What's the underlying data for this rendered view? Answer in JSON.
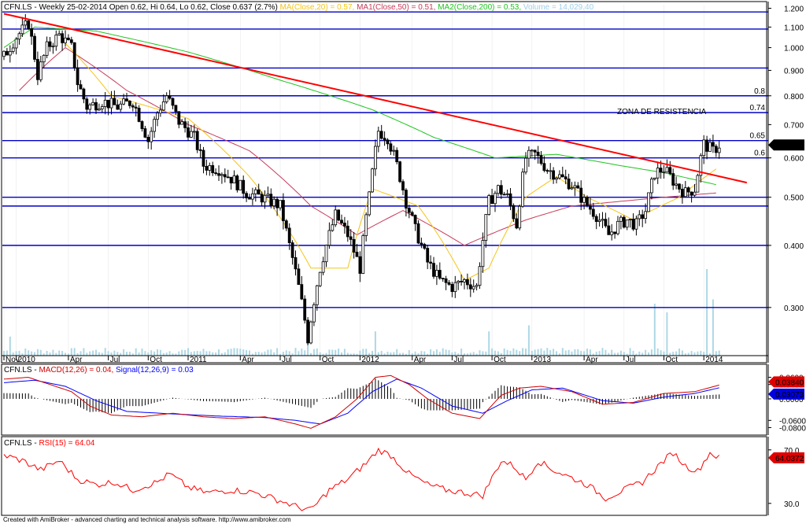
{
  "colors": {
    "candle": "#000000",
    "volume": "#add8e6",
    "support": "#0000c8",
    "trendline": "#ff0000",
    "ma20": "#f5c518",
    "ma50": "#c83c5a",
    "ma200": "#1fc41f",
    "macd": "#d00000",
    "signal": "#0000ff",
    "rsi": "#ff0000",
    "note": "#0000c8"
  },
  "header": {
    "symbol": "CFN.LS",
    "ohlc": " - Weekly 25-02-2014 Open 0.62, Hi 0.64, Lo 0.62, Close 0.637 (2.7%) ",
    "ma20": "MA(Close,20) = 0.57,",
    "ma50": " MA1(Close,50) = 0.51,",
    "ma200": " MA2(Close,200) = 0.53,",
    "volume": " Volume = 14,029.40"
  },
  "macd_header": {
    "symbol": "CFN.LS - ",
    "macd": "MACD(12,26) = 0.04,",
    "signal": " Signal(12,26,9) = 0.03"
  },
  "rsi_header": {
    "symbol": "CFN.LS - ",
    "rsi": "RSI(15) = 64.04"
  },
  "footer": "Created with AmiBroker - advanced charting and technical analysis software. http://www.amibroker.com",
  "chart_data": [
    {
      "type": "candlestick",
      "yscale": "log",
      "ylim": [
        0.24,
        1.22
      ],
      "y_ticks": [
        "1.200",
        "1.100",
        "1.000",
        "0.900",
        "0.800",
        "0.700",
        "0.600",
        "0.500",
        "0.400",
        "0.300"
      ],
      "x_ticks": [
        "Nov",
        "2010",
        "Apr",
        "Jul",
        "Oct",
        "2011",
        "Apr",
        "Jul",
        "Oct",
        "2012",
        "Apr",
        "Jul",
        "Oct",
        "2013",
        "Apr",
        "Jul",
        "Oct",
        "2014"
      ],
      "close_label": "0.637",
      "levels": [
        1.18,
        1.09,
        0.91,
        0.8,
        0.74,
        0.65,
        0.6,
        0.5,
        0.48,
        0.4,
        0.3
      ],
      "level_labels": [
        {
          "value": 0.8,
          "text": "0.8"
        },
        {
          "value": 0.74,
          "text": "0.74"
        },
        {
          "value": 0.65,
          "text": "0.65"
        },
        {
          "value": 0.6,
          "text": "0.6"
        }
      ],
      "annotation": "ZONA DE RESISTENCIA",
      "trendline": [
        {
          "week": 0,
          "price": 1.17
        },
        {
          "week": 242,
          "price": 0.535
        }
      ],
      "anchors": [
        {
          "week": 0,
          "close": 0.96
        },
        {
          "week": 4,
          "close": 1.05
        },
        {
          "week": 8,
          "close": 1.12
        },
        {
          "week": 11,
          "close": 0.88
        },
        {
          "week": 14,
          "close": 1.0
        },
        {
          "week": 18,
          "close": 1.06
        },
        {
          "week": 22,
          "close": 1.0
        },
        {
          "week": 24,
          "close": 0.85
        },
        {
          "week": 27,
          "close": 0.76
        },
        {
          "week": 32,
          "close": 0.78
        },
        {
          "week": 37,
          "close": 0.76
        },
        {
          "week": 42,
          "close": 0.78
        },
        {
          "week": 47,
          "close": 0.65
        },
        {
          "week": 50,
          "close": 0.74
        },
        {
          "week": 53,
          "close": 0.8
        },
        {
          "week": 57,
          "close": 0.71
        },
        {
          "week": 62,
          "close": 0.66
        },
        {
          "week": 65,
          "close": 0.58
        },
        {
          "week": 70,
          "close": 0.57
        },
        {
          "week": 75,
          "close": 0.54
        },
        {
          "week": 79,
          "close": 0.51
        },
        {
          "week": 84,
          "close": 0.5
        },
        {
          "week": 90,
          "close": 0.48
        },
        {
          "week": 93,
          "close": 0.4
        },
        {
          "week": 96,
          "close": 0.33
        },
        {
          "week": 99,
          "close": 0.26
        },
        {
          "week": 103,
          "close": 0.36
        },
        {
          "week": 108,
          "close": 0.46
        },
        {
          "week": 112,
          "close": 0.42
        },
        {
          "week": 116,
          "close": 0.36
        },
        {
          "week": 119,
          "close": 0.5
        },
        {
          "week": 122,
          "close": 0.68
        },
        {
          "week": 125,
          "close": 0.66
        },
        {
          "week": 128,
          "close": 0.58
        },
        {
          "week": 131,
          "close": 0.49
        },
        {
          "week": 134,
          "close": 0.43
        },
        {
          "week": 138,
          "close": 0.37
        },
        {
          "week": 142,
          "close": 0.34
        },
        {
          "week": 146,
          "close": 0.33
        },
        {
          "week": 150,
          "close": 0.34
        },
        {
          "week": 154,
          "close": 0.33
        },
        {
          "week": 158,
          "close": 0.49
        },
        {
          "week": 161,
          "close": 0.52
        },
        {
          "week": 164,
          "close": 0.5
        },
        {
          "week": 167,
          "close": 0.44
        },
        {
          "week": 170,
          "close": 0.6
        },
        {
          "week": 173,
          "close": 0.61
        },
        {
          "week": 177,
          "close": 0.57
        },
        {
          "week": 181,
          "close": 0.55
        },
        {
          "week": 185,
          "close": 0.53
        },
        {
          "week": 189,
          "close": 0.49
        },
        {
          "week": 193,
          "close": 0.46
        },
        {
          "week": 197,
          "close": 0.42
        },
        {
          "week": 200,
          "close": 0.44
        },
        {
          "week": 203,
          "close": 0.45
        },
        {
          "week": 206,
          "close": 0.44
        },
        {
          "week": 209,
          "close": 0.47
        },
        {
          "week": 212,
          "close": 0.56
        },
        {
          "week": 215,
          "close": 0.57
        },
        {
          "week": 219,
          "close": 0.53
        },
        {
          "week": 222,
          "close": 0.51
        },
        {
          "week": 225,
          "close": 0.52
        },
        {
          "week": 228,
          "close": 0.64
        },
        {
          "week": 231,
          "close": 0.62
        },
        {
          "week": 233,
          "close": 0.637
        }
      ],
      "ma20_curve": [
        {
          "week": 20,
          "value": 1.02
        },
        {
          "week": 35,
          "value": 0.8
        },
        {
          "week": 60,
          "value": 0.72
        },
        {
          "week": 80,
          "value": 0.55
        },
        {
          "week": 100,
          "value": 0.36
        },
        {
          "week": 112,
          "value": 0.36
        },
        {
          "week": 120,
          "value": 0.52
        },
        {
          "week": 135,
          "value": 0.48
        },
        {
          "week": 150,
          "value": 0.34
        },
        {
          "week": 158,
          "value": 0.36
        },
        {
          "week": 170,
          "value": 0.5
        },
        {
          "week": 180,
          "value": 0.55
        },
        {
          "week": 190,
          "value": 0.5
        },
        {
          "week": 205,
          "value": 0.45
        },
        {
          "week": 220,
          "value": 0.5
        },
        {
          "week": 232,
          "value": 0.57
        }
      ],
      "ma50_curve": [
        {
          "week": 5,
          "value": 0.82
        },
        {
          "week": 20,
          "value": 1.0
        },
        {
          "week": 40,
          "value": 0.82
        },
        {
          "week": 60,
          "value": 0.7
        },
        {
          "week": 80,
          "value": 0.62
        },
        {
          "week": 100,
          "value": 0.48
        },
        {
          "week": 115,
          "value": 0.42
        },
        {
          "week": 130,
          "value": 0.47
        },
        {
          "week": 150,
          "value": 0.4
        },
        {
          "week": 170,
          "value": 0.45
        },
        {
          "week": 185,
          "value": 0.48
        },
        {
          "week": 200,
          "value": 0.49
        },
        {
          "week": 215,
          "value": 0.5
        },
        {
          "week": 232,
          "value": 0.51
        }
      ],
      "ma200_curve": [
        {
          "week": 0,
          "value": 1.0
        },
        {
          "week": 10,
          "value": 1.1
        },
        {
          "week": 30,
          "value": 1.08
        },
        {
          "week": 60,
          "value": 0.98
        },
        {
          "week": 90,
          "value": 0.86
        },
        {
          "week": 120,
          "value": 0.75
        },
        {
          "week": 140,
          "value": 0.66
        },
        {
          "week": 160,
          "value": 0.6
        },
        {
          "week": 180,
          "value": 0.61
        },
        {
          "week": 200,
          "value": 0.58
        },
        {
          "week": 215,
          "value": 0.56
        },
        {
          "week": 232,
          "value": 0.53
        }
      ],
      "volume_spikes": [
        {
          "week": 2,
          "value": 0.22
        },
        {
          "week": 99,
          "value": 0.3
        },
        {
          "week": 121,
          "value": 0.28
        },
        {
          "week": 158,
          "value": 0.28
        },
        {
          "week": 171,
          "value": 0.35
        },
        {
          "week": 212,
          "value": 0.6
        },
        {
          "week": 216,
          "value": 0.5
        },
        {
          "week": 229,
          "value": 1.0
        },
        {
          "week": 231,
          "value": 0.65
        }
      ]
    },
    {
      "type": "line",
      "name": "MACD(12,26)",
      "ylim": [
        -0.09,
        0.07
      ],
      "y_ticks": [
        "0.0600",
        "0.0400",
        "0.0000",
        "-0.0600",
        "-0.0800"
      ],
      "macd_label": "0.03840",
      "signal_label": "0.03073",
      "macd": [
        {
          "week": 0,
          "value": 0.055
        },
        {
          "week": 8,
          "value": 0.06
        },
        {
          "week": 15,
          "value": 0.04
        },
        {
          "week": 22,
          "value": 0.02
        },
        {
          "week": 28,
          "value": -0.02
        },
        {
          "week": 35,
          "value": -0.045
        },
        {
          "week": 45,
          "value": -0.05
        },
        {
          "week": 55,
          "value": -0.04
        },
        {
          "week": 65,
          "value": -0.05
        },
        {
          "week": 75,
          "value": -0.055
        },
        {
          "week": 85,
          "value": -0.05
        },
        {
          "week": 95,
          "value": -0.07
        },
        {
          "week": 100,
          "value": -0.082
        },
        {
          "week": 108,
          "value": -0.05
        },
        {
          "week": 115,
          "value": 0.0
        },
        {
          "week": 121,
          "value": 0.06
        },
        {
          "week": 126,
          "value": 0.065
        },
        {
          "week": 132,
          "value": 0.04
        },
        {
          "week": 138,
          "value": 0.0
        },
        {
          "week": 146,
          "value": -0.04
        },
        {
          "week": 155,
          "value": -0.055
        },
        {
          "week": 162,
          "value": 0.01
        },
        {
          "week": 168,
          "value": 0.03
        },
        {
          "week": 175,
          "value": 0.035
        },
        {
          "week": 185,
          "value": 0.02
        },
        {
          "week": 195,
          "value": -0.015
        },
        {
          "week": 205,
          "value": -0.01
        },
        {
          "week": 215,
          "value": 0.015
        },
        {
          "week": 225,
          "value": 0.02
        },
        {
          "week": 233,
          "value": 0.0384
        }
      ],
      "signal": [
        {
          "week": 0,
          "value": 0.045
        },
        {
          "week": 10,
          "value": 0.052
        },
        {
          "week": 20,
          "value": 0.035
        },
        {
          "week": 30,
          "value": -0.005
        },
        {
          "week": 40,
          "value": -0.035
        },
        {
          "week": 55,
          "value": -0.042
        },
        {
          "week": 70,
          "value": -0.048
        },
        {
          "week": 85,
          "value": -0.052
        },
        {
          "week": 95,
          "value": -0.06
        },
        {
          "week": 103,
          "value": -0.07
        },
        {
          "week": 112,
          "value": -0.04
        },
        {
          "week": 120,
          "value": 0.02
        },
        {
          "week": 128,
          "value": 0.055
        },
        {
          "week": 136,
          "value": 0.03
        },
        {
          "week": 146,
          "value": -0.02
        },
        {
          "week": 156,
          "value": -0.04
        },
        {
          "week": 164,
          "value": -0.005
        },
        {
          "week": 172,
          "value": 0.025
        },
        {
          "week": 182,
          "value": 0.03
        },
        {
          "week": 195,
          "value": -0.005
        },
        {
          "week": 205,
          "value": -0.012
        },
        {
          "week": 215,
          "value": 0.005
        },
        {
          "week": 225,
          "value": 0.015
        },
        {
          "week": 233,
          "value": 0.0307
        }
      ]
    },
    {
      "type": "line",
      "name": "RSI(15)",
      "ylim": [
        24,
        74
      ],
      "y_ticks": [
        "70.0",
        "30.0"
      ],
      "rsi_label": "64.0372",
      "rsi": [
        {
          "week": 0,
          "value": 66
        },
        {
          "week": 6,
          "value": 62
        },
        {
          "week": 12,
          "value": 55
        },
        {
          "week": 18,
          "value": 62
        },
        {
          "week": 24,
          "value": 48
        },
        {
          "week": 30,
          "value": 44
        },
        {
          "week": 36,
          "value": 46
        },
        {
          "week": 42,
          "value": 40
        },
        {
          "week": 50,
          "value": 46
        },
        {
          "week": 54,
          "value": 52
        },
        {
          "week": 60,
          "value": 42
        },
        {
          "week": 66,
          "value": 38
        },
        {
          "week": 74,
          "value": 40
        },
        {
          "week": 82,
          "value": 38
        },
        {
          "week": 90,
          "value": 32
        },
        {
          "week": 96,
          "value": 27
        },
        {
          "week": 100,
          "value": 25
        },
        {
          "week": 106,
          "value": 40
        },
        {
          "week": 112,
          "value": 48
        },
        {
          "week": 118,
          "value": 60
        },
        {
          "week": 122,
          "value": 70
        },
        {
          "week": 126,
          "value": 66
        },
        {
          "week": 132,
          "value": 52
        },
        {
          "week": 138,
          "value": 44
        },
        {
          "week": 144,
          "value": 40
        },
        {
          "week": 150,
          "value": 38
        },
        {
          "week": 156,
          "value": 36
        },
        {
          "week": 162,
          "value": 62
        },
        {
          "week": 166,
          "value": 58
        },
        {
          "week": 170,
          "value": 48
        },
        {
          "week": 174,
          "value": 62
        },
        {
          "week": 178,
          "value": 56
        },
        {
          "week": 184,
          "value": 50
        },
        {
          "week": 190,
          "value": 44
        },
        {
          "week": 196,
          "value": 34
        },
        {
          "week": 202,
          "value": 40
        },
        {
          "week": 208,
          "value": 46
        },
        {
          "week": 214,
          "value": 60
        },
        {
          "week": 218,
          "value": 68
        },
        {
          "week": 222,
          "value": 58
        },
        {
          "week": 226,
          "value": 54
        },
        {
          "week": 230,
          "value": 68
        },
        {
          "week": 233,
          "value": 64
        }
      ]
    }
  ]
}
